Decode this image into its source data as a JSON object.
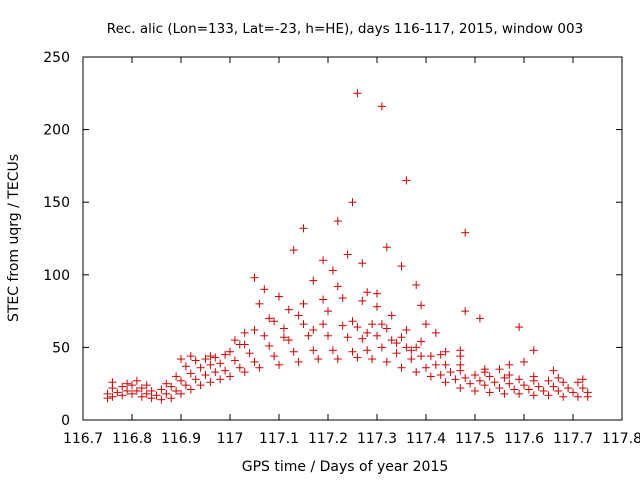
{
  "chart_data": {
    "type": "scatter",
    "title": "Rec. alic (Lon=133, Lat=-23, h=HE), days 116-117, 2015, window 003",
    "xlabel": "GPS time / Days of year 2015",
    "ylabel": "STEC from uqrg / TECUs",
    "xlim": [
      116.7,
      117.8
    ],
    "ylim": [
      0,
      250
    ],
    "x_ticks": [
      "116.7",
      "116.8",
      "116.9",
      "117",
      "117.1",
      "117.2",
      "117.3",
      "117.4",
      "117.5",
      "117.6",
      "117.7",
      "117.8"
    ],
    "y_ticks": [
      "0",
      "50",
      "100",
      "150",
      "200",
      "250"
    ],
    "grid": false,
    "legend": "none",
    "marker": "+",
    "color": "#cc0000",
    "points": [
      [
        116.75,
        15
      ],
      [
        116.76,
        16
      ],
      [
        116.78,
        17
      ],
      [
        116.8,
        18
      ],
      [
        116.82,
        16
      ],
      [
        116.84,
        15
      ],
      [
        116.86,
        14
      ],
      [
        116.88,
        15
      ],
      [
        116.9,
        18
      ],
      [
        116.92,
        21
      ],
      [
        116.94,
        24
      ],
      [
        116.96,
        26
      ],
      [
        116.98,
        28
      ],
      [
        117.0,
        30
      ],
      [
        117.03,
        33
      ],
      [
        117.06,
        36
      ],
      [
        117.1,
        38
      ],
      [
        117.14,
        40
      ],
      [
        117.18,
        42
      ],
      [
        117.22,
        42
      ],
      [
        117.26,
        43
      ],
      [
        117.29,
        42
      ],
      [
        117.32,
        40
      ],
      [
        117.35,
        36
      ],
      [
        117.38,
        33
      ],
      [
        117.41,
        30
      ],
      [
        117.44,
        26
      ],
      [
        117.47,
        22
      ],
      [
        117.5,
        20
      ],
      [
        117.53,
        19
      ],
      [
        117.56,
        18
      ],
      [
        117.59,
        18
      ],
      [
        117.62,
        17
      ],
      [
        117.65,
        17
      ],
      [
        117.68,
        16
      ],
      [
        117.71,
        16
      ],
      [
        117.73,
        16
      ],
      [
        116.75,
        18
      ],
      [
        116.77,
        19
      ],
      [
        116.79,
        20
      ],
      [
        116.81,
        20
      ],
      [
        116.83,
        18
      ],
      [
        116.85,
        17
      ],
      [
        116.87,
        18
      ],
      [
        116.89,
        20
      ],
      [
        116.91,
        24
      ],
      [
        116.93,
        28
      ],
      [
        116.95,
        31
      ],
      [
        116.97,
        33
      ],
      [
        116.99,
        34
      ],
      [
        117.02,
        36
      ],
      [
        117.05,
        40
      ],
      [
        117.09,
        44
      ],
      [
        117.13,
        47
      ],
      [
        117.17,
        48
      ],
      [
        117.21,
        48
      ],
      [
        117.25,
        47
      ],
      [
        117.28,
        48
      ],
      [
        117.31,
        50
      ],
      [
        117.34,
        46
      ],
      [
        117.37,
        42
      ],
      [
        117.4,
        36
      ],
      [
        117.43,
        31
      ],
      [
        117.46,
        28
      ],
      [
        117.49,
        25
      ],
      [
        117.52,
        24
      ],
      [
        117.55,
        22
      ],
      [
        117.58,
        21
      ],
      [
        117.61,
        21
      ],
      [
        117.64,
        20
      ],
      [
        117.67,
        20
      ],
      [
        117.7,
        19
      ],
      [
        117.73,
        19
      ],
      [
        116.76,
        22
      ],
      [
        116.78,
        23
      ],
      [
        116.8,
        24
      ],
      [
        116.82,
        22
      ],
      [
        116.84,
        20
      ],
      [
        116.86,
        21
      ],
      [
        116.88,
        23
      ],
      [
        116.9,
        27
      ],
      [
        116.92,
        32
      ],
      [
        116.94,
        36
      ],
      [
        116.96,
        38
      ],
      [
        116.98,
        39
      ],
      [
        117.01,
        41
      ],
      [
        117.04,
        46
      ],
      [
        117.08,
        51
      ],
      [
        117.12,
        55
      ],
      [
        117.16,
        58
      ],
      [
        117.2,
        58
      ],
      [
        117.24,
        57
      ],
      [
        117.27,
        56
      ],
      [
        117.3,
        58
      ],
      [
        117.33,
        55
      ],
      [
        117.36,
        50
      ],
      [
        117.39,
        44
      ],
      [
        117.42,
        38
      ],
      [
        117.45,
        33
      ],
      [
        117.48,
        29
      ],
      [
        117.51,
        27
      ],
      [
        117.54,
        26
      ],
      [
        117.57,
        25
      ],
      [
        117.6,
        24
      ],
      [
        117.63,
        23
      ],
      [
        117.66,
        23
      ],
      [
        117.69,
        22
      ],
      [
        117.72,
        22
      ],
      [
        116.76,
        26
      ],
      [
        116.79,
        25
      ],
      [
        116.81,
        27
      ],
      [
        116.83,
        24
      ],
      [
        116.87,
        25
      ],
      [
        116.89,
        30
      ],
      [
        116.91,
        37
      ],
      [
        116.93,
        41
      ],
      [
        116.95,
        42
      ],
      [
        116.97,
        43
      ],
      [
        117.0,
        47
      ],
      [
        117.03,
        52
      ],
      [
        117.07,
        58
      ],
      [
        117.11,
        63
      ],
      [
        117.15,
        66
      ],
      [
        117.19,
        66
      ],
      [
        117.23,
        65
      ],
      [
        117.26,
        64
      ],
      [
        117.29,
        66
      ],
      [
        117.32,
        63
      ],
      [
        117.35,
        57
      ],
      [
        117.38,
        50
      ],
      [
        117.41,
        44
      ],
      [
        117.44,
        38
      ],
      [
        117.47,
        34
      ],
      [
        117.5,
        31
      ],
      [
        117.53,
        30
      ],
      [
        117.56,
        29
      ],
      [
        117.59,
        28
      ],
      [
        117.62,
        27
      ],
      [
        117.65,
        27
      ],
      [
        117.68,
        26
      ],
      [
        117.71,
        26
      ],
      [
        116.9,
        42
      ],
      [
        116.92,
        44
      ],
      [
        116.96,
        44
      ],
      [
        116.99,
        45
      ],
      [
        117.02,
        52
      ],
      [
        117.05,
        62
      ],
      [
        117.08,
        70
      ],
      [
        117.12,
        76
      ],
      [
        117.15,
        80
      ],
      [
        117.19,
        83
      ],
      [
        117.23,
        84
      ],
      [
        117.27,
        82
      ],
      [
        117.3,
        78
      ],
      [
        117.33,
        72
      ],
      [
        117.36,
        62
      ],
      [
        117.39,
        54
      ],
      [
        117.43,
        45
      ],
      [
        117.47,
        38
      ],
      [
        117.52,
        33
      ],
      [
        117.57,
        31
      ],
      [
        117.62,
        30
      ],
      [
        117.67,
        29
      ],
      [
        117.72,
        28
      ],
      [
        117.05,
        98
      ],
      [
        117.07,
        90
      ],
      [
        117.1,
        85
      ],
      [
        117.13,
        117
      ],
      [
        117.15,
        132
      ],
      [
        117.17,
        96
      ],
      [
        117.19,
        110
      ],
      [
        117.21,
        103
      ],
      [
        117.22,
        137
      ],
      [
        117.24,
        114
      ],
      [
        117.25,
        150
      ],
      [
        117.26,
        225
      ],
      [
        117.27,
        108
      ],
      [
        117.28,
        88
      ],
      [
        117.3,
        87
      ],
      [
        117.31,
        216
      ],
      [
        117.32,
        119
      ],
      [
        117.35,
        106
      ],
      [
        117.36,
        165
      ],
      [
        117.38,
        93
      ],
      [
        117.39,
        79
      ],
      [
        117.42,
        60
      ],
      [
        117.47,
        48
      ],
      [
        117.48,
        129
      ],
      [
        117.48,
        75
      ],
      [
        117.51,
        70
      ],
      [
        117.59,
        64
      ],
      [
        117.62,
        48
      ],
      [
        117.57,
        38
      ],
      [
        117.52,
        35
      ],
      [
        117.01,
        55
      ],
      [
        117.03,
        60
      ],
      [
        117.06,
        80
      ],
      [
        117.09,
        68
      ],
      [
        117.11,
        57
      ],
      [
        117.14,
        72
      ],
      [
        117.17,
        62
      ],
      [
        117.2,
        75
      ],
      [
        117.22,
        92
      ],
      [
        117.25,
        68
      ],
      [
        117.28,
        60
      ],
      [
        117.31,
        66
      ],
      [
        117.34,
        53
      ],
      [
        117.37,
        48
      ],
      [
        117.4,
        66
      ],
      [
        117.44,
        47
      ],
      [
        117.47,
        44
      ],
      [
        117.55,
        35
      ],
      [
        117.6,
        40
      ],
      [
        117.66,
        34
      ]
    ]
  }
}
